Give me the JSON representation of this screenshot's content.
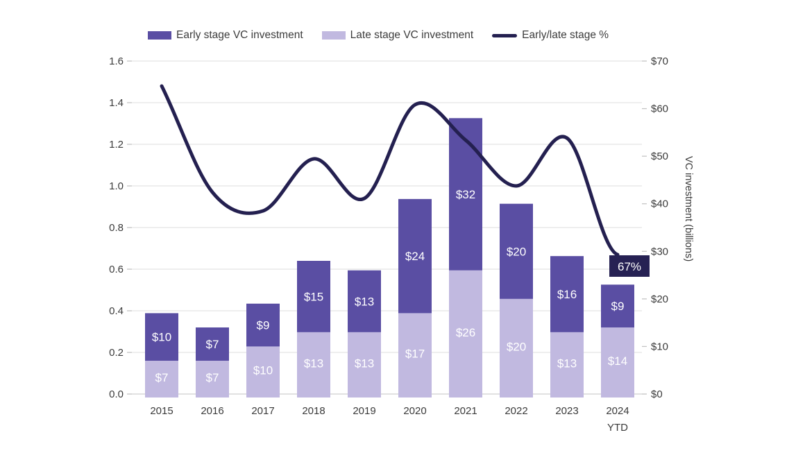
{
  "chart_data": {
    "type": "combo",
    "subtype": "stacked-bar+line",
    "title": "",
    "categories": [
      "2015",
      "2016",
      "2017",
      "2018",
      "2019",
      "2020",
      "2021",
      "2022",
      "2023",
      "2024 YTD"
    ],
    "series": [
      {
        "name": "Late stage VC investment",
        "type": "bar",
        "axis": "right",
        "color": "#c1b9e0",
        "values": [
          7,
          7,
          10,
          13,
          13,
          17,
          26,
          20,
          13,
          14
        ],
        "labels": [
          "$7",
          "$7",
          "$10",
          "$13",
          "$13",
          "$17",
          "$26",
          "$20",
          "$13",
          "$14"
        ]
      },
      {
        "name": "Early stage VC investment",
        "type": "bar",
        "axis": "right",
        "color": "#5a4ea3",
        "values": [
          10,
          7,
          9,
          15,
          13,
          24,
          32,
          20,
          16,
          9
        ],
        "labels": [
          "$10",
          "$7",
          "$9",
          "$15",
          "$13",
          "$24",
          "$32",
          "$20",
          "$16",
          "$9"
        ]
      },
      {
        "name": "Early/late stage %",
        "type": "line",
        "axis": "left",
        "color": "#242050",
        "values": [
          1.48,
          0.97,
          0.88,
          1.13,
          0.94,
          1.39,
          1.22,
          1.0,
          1.23,
          0.67
        ]
      }
    ],
    "legend": [
      {
        "label": "Early stage VC investment",
        "swatch": "rect",
        "color": "#5a4ea3"
      },
      {
        "label": "Late stage VC investment",
        "swatch": "rect",
        "color": "#c1b9e0"
      },
      {
        "label": "Early/late stage %",
        "swatch": "line",
        "color": "#242050"
      }
    ],
    "left_axis": {
      "min": 0,
      "max": 1.6,
      "step": 0.2,
      "ticks": [
        "0.0",
        "0.2",
        "0.4",
        "0.6",
        "0.8",
        "1.0",
        "1.2",
        "1.4",
        "1.6"
      ],
      "title": ""
    },
    "right_axis": {
      "min": 0,
      "max": 70,
      "step": 10,
      "ticks": [
        "$0",
        "$10",
        "$20",
        "$30",
        "$40",
        "$50",
        "$60",
        "$70"
      ],
      "title": "VC investment (billions)"
    },
    "annotation": {
      "text": "67%",
      "category_index": 9,
      "value": 0.67,
      "bg": "#262153",
      "text_color": "#ffffff"
    },
    "style": {
      "grid_color": "#e4e4e4",
      "baseline_color": "#cfcfcf",
      "tick_color": "#c4c4c4",
      "bar_label_color": "#ffffff",
      "legend_position": "top",
      "grid": "horizontal-only"
    }
  }
}
